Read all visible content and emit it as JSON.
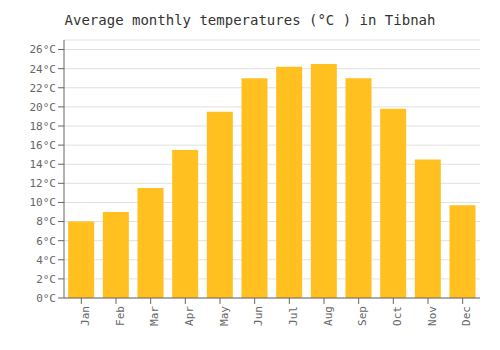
{
  "chart_data": {
    "type": "bar",
    "title": "Average monthly temperatures (°C ) in Tibnah",
    "categories": [
      "Jan",
      "Feb",
      "Mar",
      "Apr",
      "May",
      "Jun",
      "Jul",
      "Aug",
      "Sep",
      "Oct",
      "Nov",
      "Dec"
    ],
    "values": [
      8.0,
      9.0,
      11.5,
      15.5,
      19.5,
      23.0,
      24.2,
      24.5,
      23.0,
      19.8,
      14.5,
      9.7
    ],
    "color": "#FFC020",
    "ylim": [
      0,
      27
    ],
    "yticks": [
      {
        "value": 0,
        "label": "0°C"
      },
      {
        "value": 2,
        "label": "2°C"
      },
      {
        "value": 4,
        "label": "4°C"
      },
      {
        "value": 6,
        "label": "6°C"
      },
      {
        "value": 8,
        "label": "8°C"
      },
      {
        "value": 10,
        "label": "10°C"
      },
      {
        "value": 12,
        "label": "12°C"
      },
      {
        "value": 14,
        "label": "14°C"
      },
      {
        "value": 16,
        "label": "16°C"
      },
      {
        "value": 18,
        "label": "18°C"
      },
      {
        "value": 20,
        "label": "20°C"
      },
      {
        "value": 22,
        "label": "22°C"
      },
      {
        "value": 24,
        "label": "24°C"
      },
      {
        "value": 26,
        "label": "26°C"
      }
    ],
    "grid": true
  }
}
